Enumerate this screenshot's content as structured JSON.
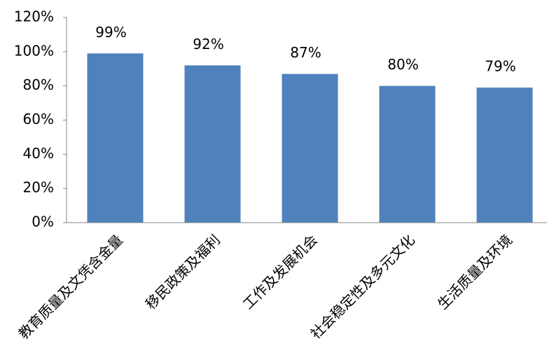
{
  "chart_data": {
    "type": "bar",
    "categories": [
      "教育质量及文凭含金量",
      "移民政策及福利",
      "工作及发展机会",
      "社会稳定性及多元文化",
      "生活质量及环境"
    ],
    "values": [
      99,
      92,
      87,
      80,
      79
    ],
    "value_labels": [
      "99%",
      "92%",
      "87%",
      "80%",
      "79%"
    ],
    "color": "#4f81bd",
    "ylim": [
      0,
      120
    ],
    "yticks": [
      {
        "value": 0,
        "label": "0%"
      },
      {
        "value": 20,
        "label": "20%"
      },
      {
        "value": 40,
        "label": "40%"
      },
      {
        "value": 60,
        "label": "60%"
      },
      {
        "value": 80,
        "label": "80%"
      },
      {
        "value": 100,
        "label": "100%"
      },
      {
        "value": 120,
        "label": "120%"
      }
    ],
    "grid": false
  }
}
